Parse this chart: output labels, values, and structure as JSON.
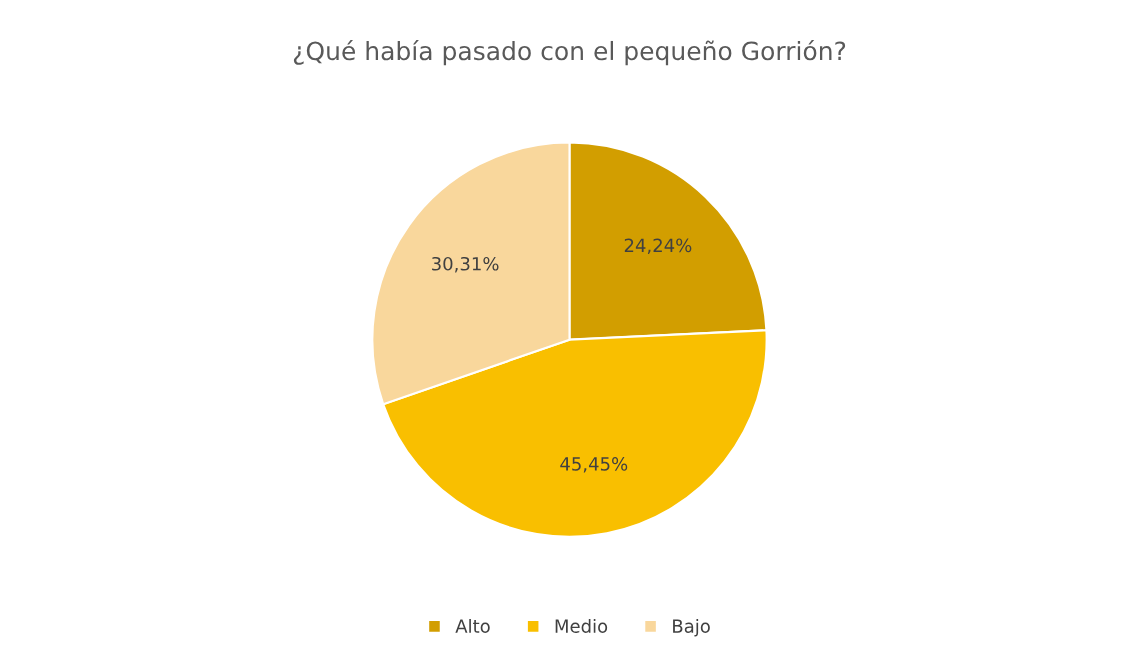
{
  "chart_data": {
    "type": "pie",
    "title": "¿Qué había pasado con el pequeño Gorrión?",
    "categories": [
      "Alto",
      "Medio",
      "Bajo"
    ],
    "values": [
      24.24,
      45.45,
      30.31
    ],
    "colors": [
      "#d29e00",
      "#f9bf00",
      "#f9d79c"
    ],
    "value_labels": [
      "24,24%",
      "45,45%",
      "30,31%"
    ],
    "legend": "bottom"
  }
}
